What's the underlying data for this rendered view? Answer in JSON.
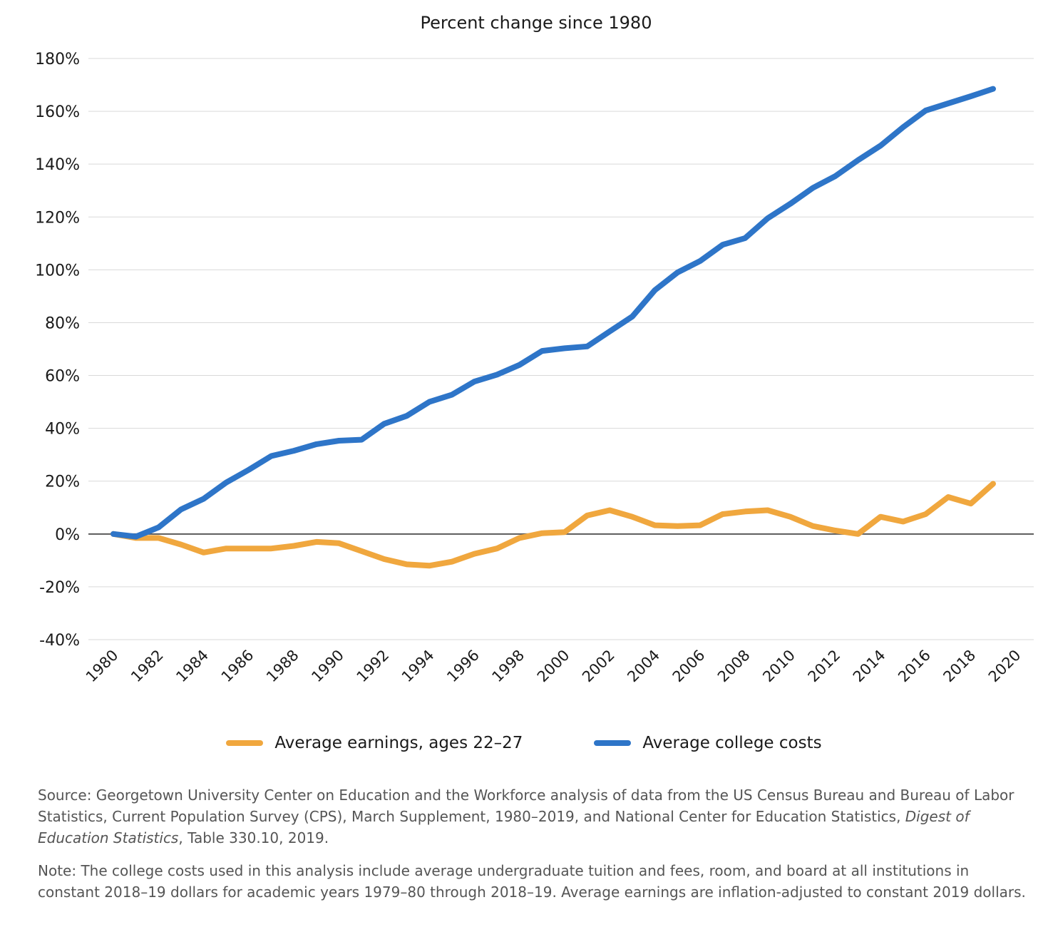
{
  "chart_data": {
    "type": "line",
    "title": "Percent change since 1980",
    "xlabel": "",
    "ylabel": "",
    "xlim": [
      1980,
      2020
    ],
    "ylim": [
      -40,
      180
    ],
    "y_ticks": [
      -40,
      -20,
      0,
      20,
      40,
      60,
      80,
      100,
      120,
      140,
      160,
      180
    ],
    "y_tick_labels": [
      "-40%",
      "-20%",
      "0%",
      "20%",
      "40%",
      "60%",
      "80%",
      "100%",
      "120%",
      "140%",
      "160%",
      "180%"
    ],
    "x_ticks": [
      1980,
      1982,
      1984,
      1986,
      1988,
      1990,
      1992,
      1994,
      1996,
      1998,
      2000,
      2002,
      2004,
      2006,
      2008,
      2010,
      2012,
      2014,
      2016,
      2018,
      2020
    ],
    "x_tick_labels": [
      "1980",
      "1982",
      "1984",
      "1986",
      "1988",
      "1990",
      "1992",
      "1994",
      "1996",
      "1998",
      "2000",
      "2002",
      "2004",
      "2006",
      "2008",
      "2010",
      "2012",
      "2014",
      "2016",
      "2018",
      "2020"
    ],
    "grid": true,
    "legend_position": "bottom",
    "x": [
      1980,
      1981,
      1982,
      1983,
      1984,
      1985,
      1986,
      1987,
      1988,
      1989,
      1990,
      1991,
      1992,
      1993,
      1994,
      1995,
      1996,
      1997,
      1998,
      1999,
      2000,
      2001,
      2002,
      2003,
      2004,
      2005,
      2006,
      2007,
      2008,
      2009,
      2010,
      2011,
      2012,
      2013,
      2014,
      2015,
      2016,
      2017,
      2018
    ],
    "series": [
      {
        "name": "Average earnings, ages 22–27",
        "color": "#f0a73e",
        "values": [
          0,
          -1.5,
          -1.5,
          -4,
          -7,
          -5.5,
          -5.5,
          -5.5,
          -4.5,
          -3,
          -3.5,
          -6.5,
          -9.5,
          -11.5,
          -12,
          -10.5,
          -7.5,
          -5.5,
          -1.5,
          0.3,
          0.7,
          7,
          9,
          6.5,
          3.3,
          3,
          3.3,
          7.5,
          8.5,
          9,
          6.5,
          3,
          1.3,
          0,
          6.5,
          4.7,
          7.5,
          14,
          11.5
        ]
      },
      {
        "name": "Average college costs",
        "color": "#2e75c8",
        "values": [
          0,
          -1,
          2.5,
          9.3,
          13.3,
          19.5,
          24.3,
          29.5,
          31.5,
          34,
          35.3,
          35.7,
          41.7,
          44.7,
          50,
          52.7,
          57.7,
          60.3,
          64,
          69.3,
          70.3,
          71,
          76.7,
          82.3,
          92.3,
          99,
          103.3,
          109.5,
          112,
          119.5,
          125,
          131,
          135.5,
          141.5,
          147,
          154,
          160.3,
          163,
          165.7
        ]
      }
    ],
    "extra_points": {
      "earnings_2019": 19,
      "costs_2019": 168.5
    }
  },
  "notes": {
    "source_prefix": "Source: Georgetown University Center on Education and the Workforce analysis of data from the US Census Bureau and Bureau of Labor Statistics, Current Population Survey (CPS), March Supplement, 1980–2019, and National Center for Education Statistics, ",
    "source_italic": "Digest of Education Statistics",
    "source_suffix": ", Table 330.10, 2019.",
    "note": "Note: The college costs used in this analysis include average undergraduate tuition and fees, room, and board at all institutions in constant 2018–19 dollars for academic years 1979–80 through 2018–19. Average earnings are inflation-adjusted to constant 2019 dollars."
  }
}
